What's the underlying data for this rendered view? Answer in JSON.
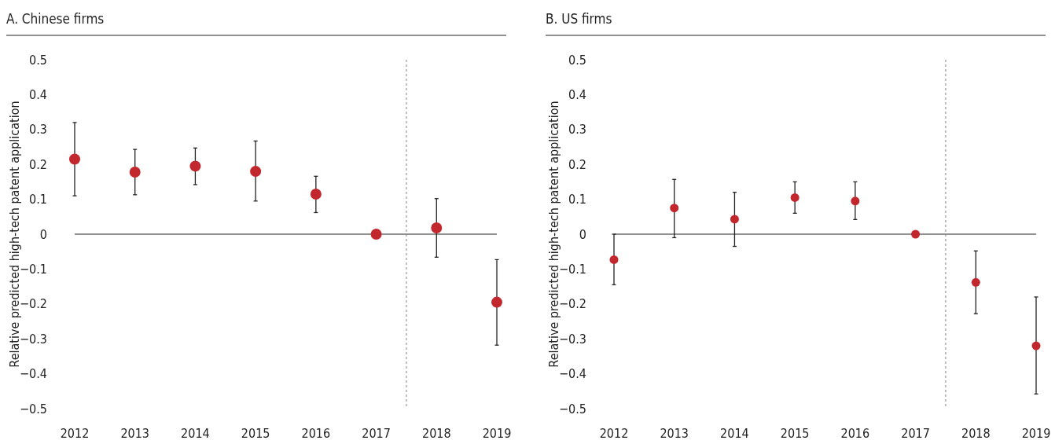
{
  "chart_data": [
    {
      "type": "scatter",
      "title": "A. Chinese firms",
      "ylabel": "Relative predicted high-tech patent application",
      "x": [
        2012,
        2013,
        2014,
        2015,
        2016,
        2017,
        2018,
        2019
      ],
      "xlim": [
        2012,
        2019
      ],
      "xticks": [
        2012,
        2013,
        2014,
        2015,
        2016,
        2017,
        2018,
        2019
      ],
      "ylim": [
        -0.5,
        0.5
      ],
      "yticks": [
        {
          "value": -0.5,
          "label": "−0.5"
        },
        {
          "value": -0.4,
          "label": "−0.4"
        },
        {
          "value": -0.3,
          "label": "−0.3"
        },
        {
          "value": -0.2,
          "label": "−0.2"
        },
        {
          "value": -0.1,
          "label": "−0.1"
        },
        0,
        0.1,
        0.2,
        0.3,
        0.4,
        0.5
      ],
      "series": [
        {
          "color": "#c1272d",
          "values": [
            0.215,
            0.178,
            0.195,
            0.18,
            0.115,
            0,
            0.018,
            -0.195
          ],
          "errors": [
            [
              0.11,
              0.32
            ],
            [
              0.113,
              0.243
            ],
            [
              0.142,
              0.247
            ],
            [
              0.095,
              0.267
            ],
            [
              0.062,
              0.166
            ],
            null,
            [
              -0.066,
              0.102
            ],
            [
              -0.318,
              -0.073
            ]
          ]
        }
      ],
      "ref_lines": [
        {
          "axis": "x",
          "value": 2017.5,
          "color": "#808080",
          "line_style": "dashed"
        }
      ],
      "marker": "circle"
    },
    {
      "type": "scatter",
      "title": "B. US firms",
      "ylabel": "Relative predicted high-tech patent application",
      "x": [
        2012,
        2013,
        2014,
        2015,
        2016,
        2017,
        2018,
        2019
      ],
      "xlim": [
        2012,
        2019
      ],
      "xticks": [
        2012,
        2013,
        2014,
        2015,
        2016,
        2017,
        2018,
        2019
      ],
      "ylim": [
        -0.5,
        0.5
      ],
      "yticks": [
        {
          "value": -0.5,
          "label": "−0.5"
        },
        {
          "value": -0.4,
          "label": "−0.4"
        },
        {
          "value": -0.3,
          "label": "−0.3"
        },
        {
          "value": -0.2,
          "label": "−0.2"
        },
        {
          "value": -0.1,
          "label": "−0.1"
        },
        0,
        0.1,
        0.2,
        0.3,
        0.4,
        0.5
      ],
      "series": [
        {
          "color": "#c1272d",
          "values": [
            -0.073,
            0.075,
            0.043,
            0.105,
            0.095,
            0,
            -0.138,
            -0.32
          ],
          "errors": [
            [
              -0.145,
              0
            ],
            [
              -0.01,
              0.157
            ],
            [
              -0.035,
              0.12
            ],
            [
              0.06,
              0.15
            ],
            [
              0.042,
              0.15
            ],
            null,
            [
              -0.228,
              -0.048
            ],
            [
              -0.458,
              -0.18
            ]
          ]
        }
      ],
      "ref_lines": [
        {
          "axis": "x",
          "value": 2017.5,
          "color": "#808080",
          "line_style": "dashed"
        }
      ],
      "marker": "circle"
    }
  ]
}
